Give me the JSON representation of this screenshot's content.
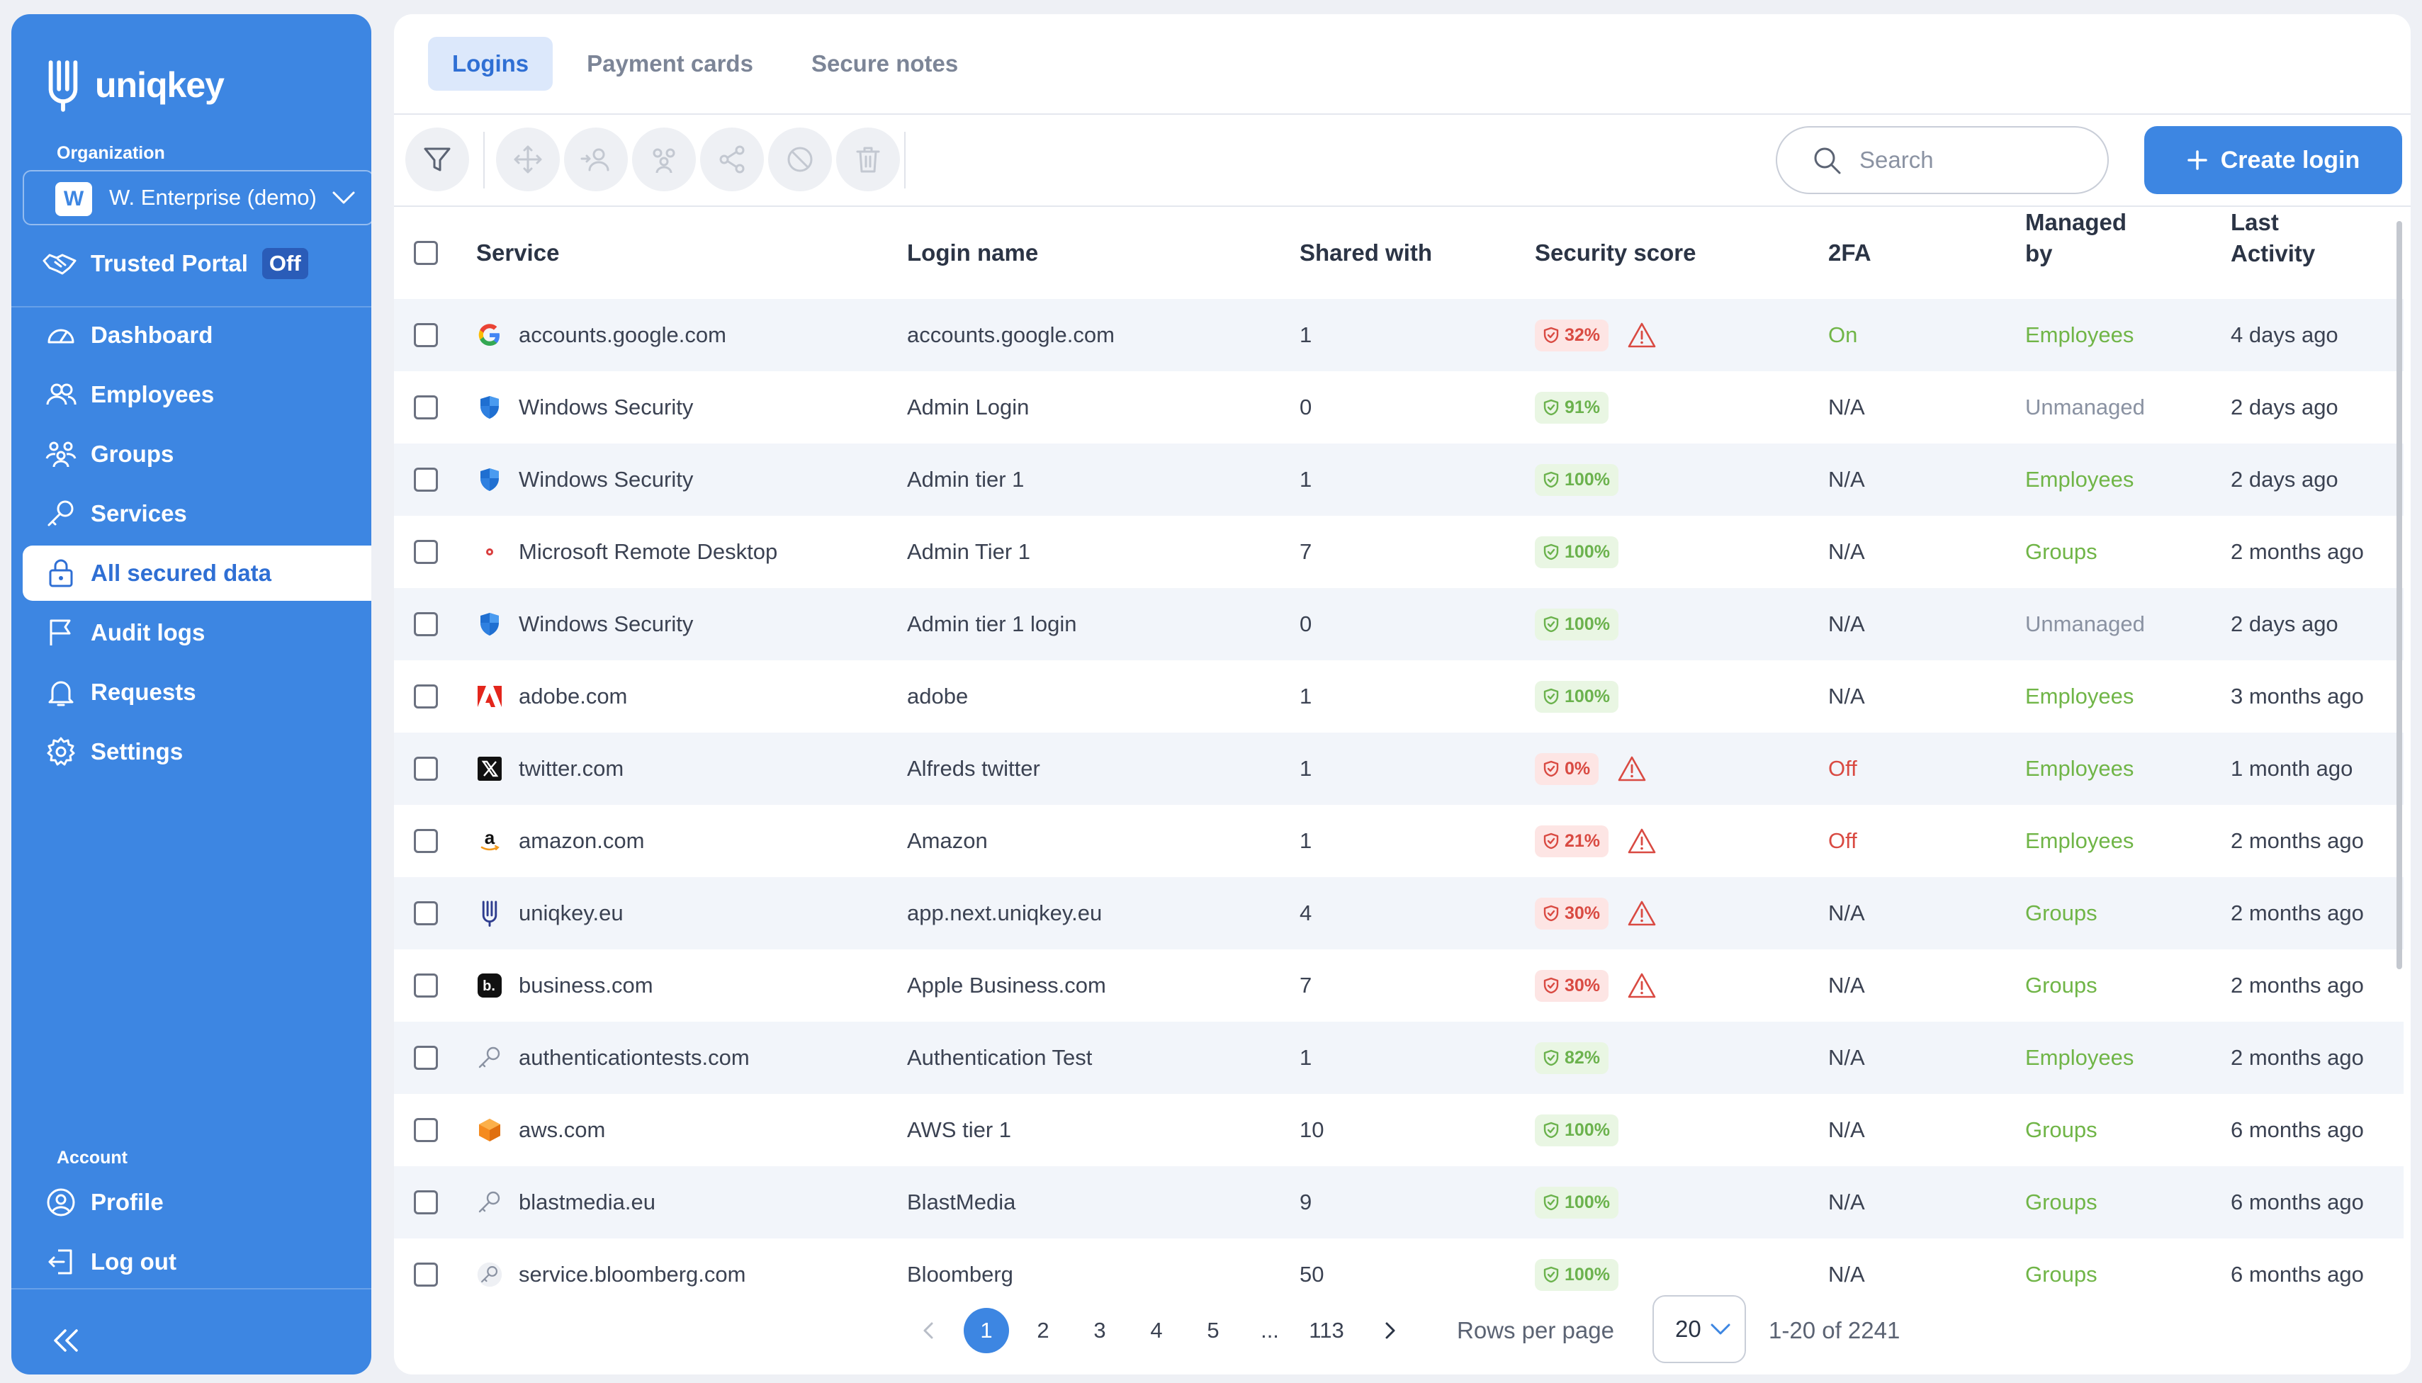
{
  "brand": {
    "name": "uniqkey"
  },
  "sidebar": {
    "org_label": "Organization",
    "org_initial": "W",
    "org_name": "W. Enterprise (demo)",
    "trusted_portal": "Trusted Portal",
    "trusted_status": "Off",
    "items": [
      {
        "label": "Dashboard",
        "icon": "dashboard-icon"
      },
      {
        "label": "Employees",
        "icon": "employees-icon"
      },
      {
        "label": "Groups",
        "icon": "groups-icon"
      },
      {
        "label": "Services",
        "icon": "key-icon"
      },
      {
        "label": "All secured data",
        "icon": "lock-icon",
        "active": true
      },
      {
        "label": "Audit logs",
        "icon": "flag-icon"
      },
      {
        "label": "Requests",
        "icon": "bell-icon"
      },
      {
        "label": "Settings",
        "icon": "gear-icon"
      }
    ],
    "account_label": "Account",
    "account_items": [
      {
        "label": "Profile",
        "icon": "profile-icon"
      },
      {
        "label": "Log out",
        "icon": "logout-icon"
      }
    ]
  },
  "tabs": [
    {
      "label": "Logins",
      "active": true
    },
    {
      "label": "Payment cards"
    },
    {
      "label": "Secure notes"
    }
  ],
  "toolbar": {
    "search_placeholder": "Search",
    "create_label": "Create login"
  },
  "table": {
    "headers": {
      "service": "Service",
      "login_name": "Login name",
      "shared_with": "Shared with",
      "security_score": "Security score",
      "twofa": "2FA",
      "managed_by_1": "Managed",
      "managed_by_2": "by",
      "last_activity_1": "Last",
      "last_activity_2": "Activity"
    },
    "rows": [
      {
        "service": "accounts.google.com",
        "icon": "google",
        "login": "accounts.google.com",
        "shared": "1",
        "score": "32%",
        "risk": true,
        "twofa": "On",
        "managed": "Employees",
        "last": "4 days ago"
      },
      {
        "service": "Windows Security",
        "icon": "shield",
        "login": "Admin Login",
        "shared": "0",
        "score": "91%",
        "risk": false,
        "twofa": "N/A",
        "managed": "Unmanaged",
        "last": "2 days ago"
      },
      {
        "service": "Windows Security",
        "icon": "shield",
        "login": "Admin tier 1",
        "shared": "1",
        "score": "100%",
        "risk": false,
        "twofa": "N/A",
        "managed": "Employees",
        "last": "2 days ago"
      },
      {
        "service": "Microsoft Remote Desktop",
        "icon": "dot",
        "login": "Admin Tier 1",
        "shared": "7",
        "score": "100%",
        "risk": false,
        "twofa": "N/A",
        "managed": "Groups",
        "last": "2 months ago"
      },
      {
        "service": "Windows Security",
        "icon": "shield",
        "login": "Admin tier 1 login",
        "shared": "0",
        "score": "100%",
        "risk": false,
        "twofa": "N/A",
        "managed": "Unmanaged",
        "last": "2 days ago"
      },
      {
        "service": "adobe.com",
        "icon": "adobe",
        "login": "adobe",
        "shared": "1",
        "score": "100%",
        "risk": false,
        "twofa": "N/A",
        "managed": "Employees",
        "last": "3 months ago"
      },
      {
        "service": "twitter.com",
        "icon": "x",
        "login": "Alfreds twitter",
        "shared": "1",
        "score": "0%",
        "risk": true,
        "twofa": "Off",
        "managed": "Employees",
        "last": "1 month ago"
      },
      {
        "service": "amazon.com",
        "icon": "amazon",
        "login": "Amazon",
        "shared": "1",
        "score": "21%",
        "risk": true,
        "twofa": "Off",
        "managed": "Employees",
        "last": "2 months ago"
      },
      {
        "service": "uniqkey.eu",
        "icon": "uniqkey",
        "login": "app.next.uniqkey.eu",
        "shared": "4",
        "score": "30%",
        "risk": true,
        "twofa": "N/A",
        "managed": "Groups",
        "last": "2 months ago"
      },
      {
        "service": "business.com",
        "icon": "business",
        "login": "Apple Business.com",
        "shared": "7",
        "score": "30%",
        "risk": true,
        "twofa": "N/A",
        "managed": "Groups",
        "last": "2 months ago"
      },
      {
        "service": "authenticationtests.com",
        "icon": "key",
        "login": "Authentication Test",
        "shared": "1",
        "score": "82%",
        "risk": false,
        "twofa": "N/A",
        "managed": "Employees",
        "last": "2 months ago"
      },
      {
        "service": "aws.com",
        "icon": "aws",
        "login": "AWS tier 1",
        "shared": "10",
        "score": "100%",
        "risk": false,
        "twofa": "N/A",
        "managed": "Groups",
        "last": "6 months ago"
      },
      {
        "service": "blastmedia.eu",
        "icon": "key",
        "login": "BlastMedia",
        "shared": "9",
        "score": "100%",
        "risk": false,
        "twofa": "N/A",
        "managed": "Groups",
        "last": "6 months ago"
      },
      {
        "service": "service.bloomberg.com",
        "icon": "key-circle",
        "login": "Bloomberg",
        "shared": "50",
        "score": "100%",
        "risk": false,
        "twofa": "N/A",
        "managed": "Groups",
        "last": "6 months ago"
      }
    ]
  },
  "pagination": {
    "pages": [
      "1",
      "2",
      "3",
      "4",
      "5",
      "...",
      "113"
    ],
    "current": "1",
    "rows_per_page_label": "Rows per page",
    "rows_per_page": "20",
    "range": "1-20 of 2241"
  },
  "colors": {
    "accent": "#3d86e2",
    "good": "#6bb24d",
    "bad": "#d94a42",
    "muted": "#8a92a2"
  }
}
